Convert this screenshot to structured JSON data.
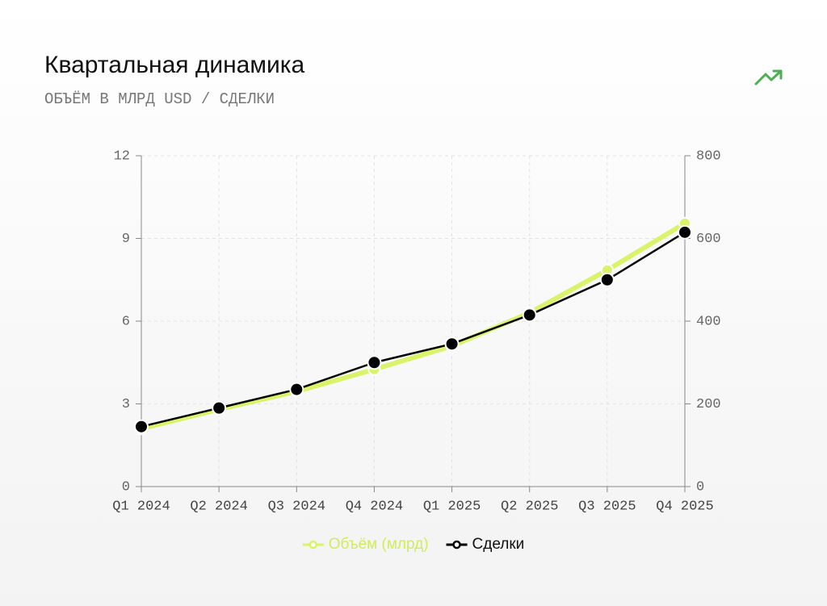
{
  "chart_data": {
    "type": "line",
    "title": "Квартальная динамика",
    "subtitle": "ОБЪЁМ В МЛРД USD / СДЕЛКИ",
    "categories": [
      "Q1 2024",
      "Q2 2024",
      "Q3 2024",
      "Q4 2024",
      "Q1 2025",
      "Q2 2025",
      "Q3 2025",
      "Q4 2025"
    ],
    "series": [
      {
        "name": "Объём (млрд)",
        "color": "#d9f46a",
        "values": [
          2.1,
          2.8,
          3.45,
          4.25,
          5.1,
          6.3,
          7.85,
          9.55
        ]
      },
      {
        "name": "Сделки",
        "color": "#000000",
        "axis": "y2",
        "values": [
          145,
          190,
          235,
          300,
          345,
          415,
          500,
          615
        ]
      }
    ],
    "ylim": [
      0,
      12
    ],
    "yticks": [
      0,
      3,
      6,
      9,
      12
    ],
    "y2lim": [
      0,
      800
    ],
    "y2ticks": [
      0,
      200,
      400,
      600,
      800
    ],
    "grid": true
  }
}
